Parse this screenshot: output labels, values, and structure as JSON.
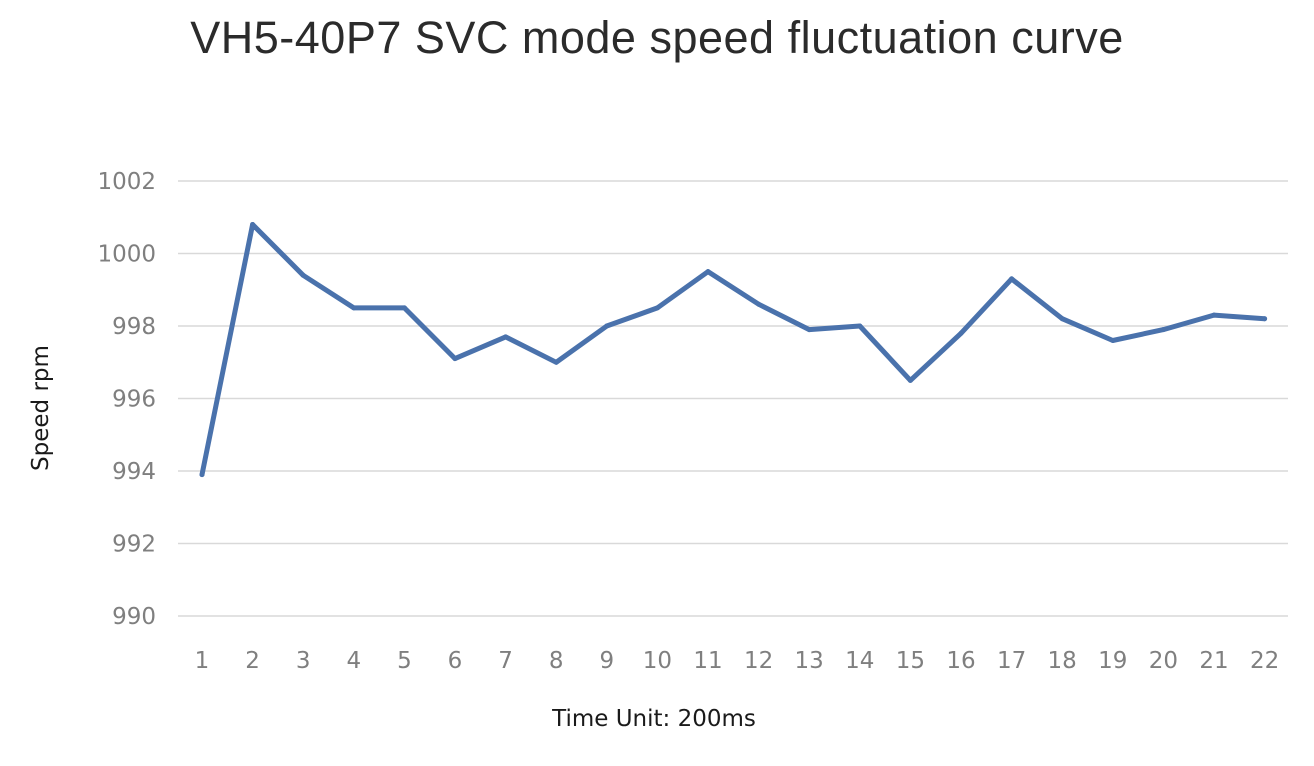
{
  "chart_data": {
    "type": "line",
    "title": "VH5-40P7 SVC mode speed fluctuation curve",
    "xlabel": "Time  Unit: 200ms",
    "ylabel": "Speed rpm",
    "x": [
      1,
      2,
      3,
      4,
      5,
      6,
      7,
      8,
      9,
      10,
      11,
      12,
      13,
      14,
      15,
      16,
      17,
      18,
      19,
      20,
      21,
      22
    ],
    "series": [
      {
        "values": [
          993.9,
          1000.8,
          999.4,
          998.5,
          998.5,
          997.1,
          997.7,
          997.0,
          998.0,
          998.5,
          999.5,
          998.6,
          997.9,
          998.0,
          996.5,
          997.8,
          999.3,
          998.2,
          997.6,
          997.9,
          998.3,
          998.2
        ],
        "color": "#4a72ac"
      }
    ],
    "ylim": [
      990,
      1002
    ],
    "yticks": [
      990,
      992,
      994,
      996,
      998,
      1000,
      1002
    ],
    "grid": true,
    "gridline_color": "#d9d9d9",
    "tick_label_color": "#7f7f7f",
    "legend": false
  }
}
